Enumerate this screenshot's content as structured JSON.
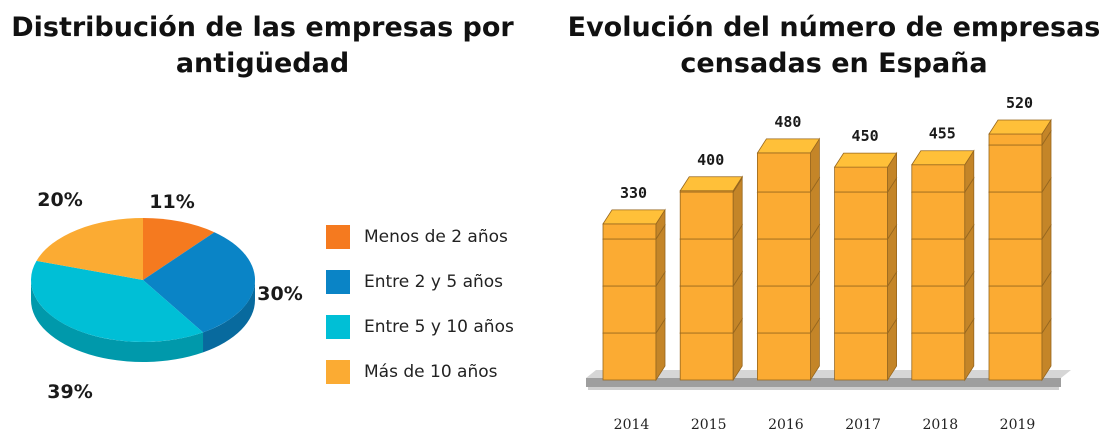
{
  "chart_data": [
    {
      "type": "pie",
      "title": "Distribución de las empresas por antigüedad",
      "categories": [
        "Menos de 2 años",
        "Entre 2 y 5 años",
        "Entre 5 y 10 años",
        "Más de 10 años"
      ],
      "values": [
        11,
        30,
        39,
        20
      ],
      "value_labels": [
        "11%",
        "30%",
        "39%",
        "20%"
      ],
      "colors": [
        "#f57a1f",
        "#0a84c6",
        "#00bfd6",
        "#fbab33"
      ],
      "legend_position": "right"
    },
    {
      "type": "bar",
      "title": "Evolución del número de empresas censadas en España",
      "categories": [
        "2014",
        "2015",
        "2016",
        "2017",
        "2018",
        "2019"
      ],
      "values": [
        330,
        400,
        480,
        450,
        455,
        520
      ],
      "value_labels": [
        "330",
        "400",
        "480",
        "450",
        "455",
        "520"
      ],
      "color": "#fbab33",
      "grid": false
    }
  ]
}
